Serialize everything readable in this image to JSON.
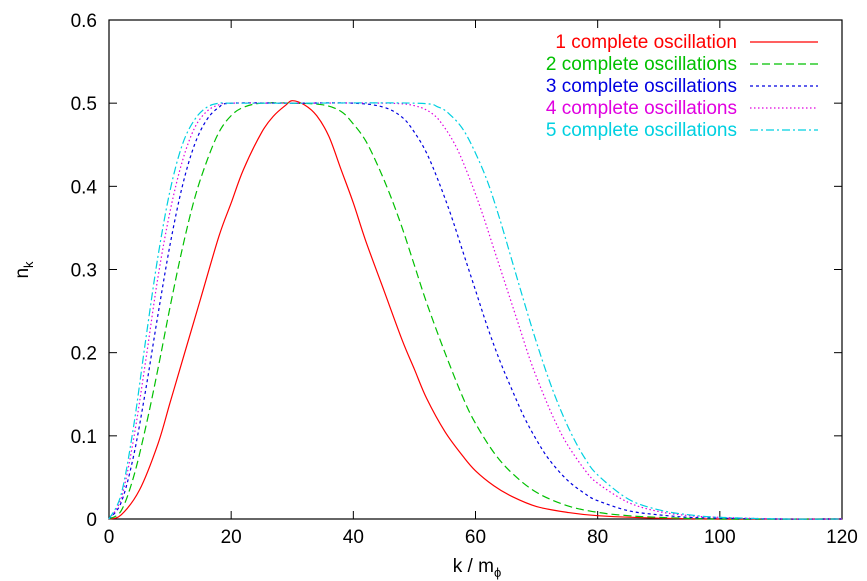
{
  "chart_data": {
    "type": "line",
    "xlabel": "k / m",
    "xlabel_sub": "ϕ",
    "ylabel": "n",
    "ylabel_sub": "k",
    "xlim": [
      0,
      120
    ],
    "ylim": [
      0,
      0.6
    ],
    "xticks": [
      0,
      20,
      40,
      60,
      80,
      100,
      120
    ],
    "yticks": [
      0,
      0.1,
      0.2,
      0.3,
      0.4,
      0.5,
      0.6
    ],
    "xtick_labels": [
      "0",
      "20",
      "40",
      "60",
      "80",
      "100",
      "120"
    ],
    "ytick_labels": [
      "0",
      "0.1",
      "0.2",
      "0.3",
      "0.4",
      "0.5",
      "0.6"
    ],
    "grid": false,
    "legend_position": "top-right",
    "series": [
      {
        "name": "1 complete oscillation",
        "color": "#ff0000",
        "dash": "solid",
        "points": [
          [
            0,
            0
          ],
          [
            2,
            0.005
          ],
          [
            5,
            0.035
          ],
          [
            8,
            0.09
          ],
          [
            10,
            0.14
          ],
          [
            12,
            0.19
          ],
          [
            15,
            0.265
          ],
          [
            18,
            0.34
          ],
          [
            20,
            0.38
          ],
          [
            22,
            0.42
          ],
          [
            25,
            0.465
          ],
          [
            27,
            0.485
          ],
          [
            29,
            0.498
          ],
          [
            30,
            0.503
          ],
          [
            32,
            0.498
          ],
          [
            34,
            0.485
          ],
          [
            36,
            0.46
          ],
          [
            38,
            0.42
          ],
          [
            40,
            0.38
          ],
          [
            42,
            0.335
          ],
          [
            45,
            0.275
          ],
          [
            48,
            0.215
          ],
          [
            50,
            0.18
          ],
          [
            52,
            0.145
          ],
          [
            55,
            0.105
          ],
          [
            58,
            0.075
          ],
          [
            60,
            0.058
          ],
          [
            63,
            0.04
          ],
          [
            66,
            0.027
          ],
          [
            70,
            0.015
          ],
          [
            75,
            0.008
          ],
          [
            80,
            0.004
          ],
          [
            90,
            0.001
          ],
          [
            100,
            0.0
          ],
          [
            120,
            0.0
          ]
        ]
      },
      {
        "name": "2 complete oscillations",
        "color": "#00c000",
        "dash": "8,4",
        "points": [
          [
            0,
            0
          ],
          [
            2,
            0.01
          ],
          [
            4,
            0.05
          ],
          [
            6,
            0.11
          ],
          [
            8,
            0.18
          ],
          [
            10,
            0.255
          ],
          [
            12,
            0.325
          ],
          [
            14,
            0.385
          ],
          [
            16,
            0.43
          ],
          [
            18,
            0.465
          ],
          [
            20,
            0.485
          ],
          [
            22,
            0.495
          ],
          [
            25,
            0.5
          ],
          [
            30,
            0.5
          ],
          [
            35,
            0.498
          ],
          [
            38,
            0.49
          ],
          [
            40,
            0.475
          ],
          [
            42,
            0.455
          ],
          [
            44,
            0.425
          ],
          [
            46,
            0.39
          ],
          [
            48,
            0.35
          ],
          [
            50,
            0.305
          ],
          [
            52,
            0.26
          ],
          [
            55,
            0.2
          ],
          [
            58,
            0.145
          ],
          [
            60,
            0.115
          ],
          [
            63,
            0.08
          ],
          [
            66,
            0.055
          ],
          [
            70,
            0.032
          ],
          [
            75,
            0.016
          ],
          [
            80,
            0.008
          ],
          [
            85,
            0.004
          ],
          [
            90,
            0.002
          ],
          [
            100,
            0.0
          ],
          [
            120,
            0.0
          ]
        ]
      },
      {
        "name": "3 complete oscillations",
        "color": "#0000e0",
        "dash": "3,3",
        "points": [
          [
            0,
            0
          ],
          [
            2,
            0.02
          ],
          [
            4,
            0.075
          ],
          [
            6,
            0.155
          ],
          [
            8,
            0.245
          ],
          [
            10,
            0.33
          ],
          [
            12,
            0.4
          ],
          [
            14,
            0.45
          ],
          [
            16,
            0.48
          ],
          [
            18,
            0.495
          ],
          [
            20,
            0.5
          ],
          [
            30,
            0.5
          ],
          [
            40,
            0.5
          ],
          [
            45,
            0.495
          ],
          [
            48,
            0.483
          ],
          [
            50,
            0.465
          ],
          [
            52,
            0.44
          ],
          [
            54,
            0.405
          ],
          [
            56,
            0.365
          ],
          [
            58,
            0.32
          ],
          [
            60,
            0.275
          ],
          [
            62,
            0.23
          ],
          [
            64,
            0.19
          ],
          [
            66,
            0.155
          ],
          [
            68,
            0.122
          ],
          [
            70,
            0.095
          ],
          [
            72,
            0.072
          ],
          [
            75,
            0.047
          ],
          [
            78,
            0.03
          ],
          [
            80,
            0.022
          ],
          [
            85,
            0.01
          ],
          [
            90,
            0.005
          ],
          [
            95,
            0.002
          ],
          [
            100,
            0.001
          ],
          [
            110,
            0.0
          ],
          [
            120,
            0.0
          ]
        ]
      },
      {
        "name": "4 complete oscillations",
        "color": "#e000e0",
        "dash": "1.5,2.5",
        "points": [
          [
            0,
            0
          ],
          [
            2,
            0.025
          ],
          [
            4,
            0.095
          ],
          [
            6,
            0.19
          ],
          [
            8,
            0.29
          ],
          [
            10,
            0.37
          ],
          [
            12,
            0.43
          ],
          [
            14,
            0.47
          ],
          [
            16,
            0.49
          ],
          [
            18,
            0.498
          ],
          [
            20,
            0.5
          ],
          [
            30,
            0.5
          ],
          [
            45,
            0.5
          ],
          [
            50,
            0.497
          ],
          [
            53,
            0.487
          ],
          [
            55,
            0.47
          ],
          [
            57,
            0.445
          ],
          [
            59,
            0.41
          ],
          [
            61,
            0.37
          ],
          [
            63,
            0.325
          ],
          [
            65,
            0.28
          ],
          [
            67,
            0.235
          ],
          [
            69,
            0.19
          ],
          [
            71,
            0.152
          ],
          [
            73,
            0.118
          ],
          [
            75,
            0.09
          ],
          [
            78,
            0.058
          ],
          [
            80,
            0.043
          ],
          [
            85,
            0.02
          ],
          [
            90,
            0.009
          ],
          [
            95,
            0.004
          ],
          [
            100,
            0.002
          ],
          [
            110,
            0.0
          ],
          [
            120,
            0.0
          ]
        ]
      },
      {
        "name": "5 complete oscillations",
        "color": "#00d0e0",
        "dash": "8,3,2,3",
        "points": [
          [
            0,
            0
          ],
          [
            2,
            0.03
          ],
          [
            4,
            0.11
          ],
          [
            6,
            0.215
          ],
          [
            8,
            0.315
          ],
          [
            10,
            0.395
          ],
          [
            12,
            0.45
          ],
          [
            14,
            0.48
          ],
          [
            16,
            0.495
          ],
          [
            18,
            0.5
          ],
          [
            20,
            0.5
          ],
          [
            30,
            0.5
          ],
          [
            50,
            0.5
          ],
          [
            54,
            0.495
          ],
          [
            56,
            0.485
          ],
          [
            58,
            0.468
          ],
          [
            60,
            0.44
          ],
          [
            62,
            0.405
          ],
          [
            64,
            0.36
          ],
          [
            66,
            0.31
          ],
          [
            68,
            0.26
          ],
          [
            70,
            0.212
          ],
          [
            72,
            0.168
          ],
          [
            74,
            0.13
          ],
          [
            76,
            0.098
          ],
          [
            78,
            0.072
          ],
          [
            80,
            0.053
          ],
          [
            85,
            0.024
          ],
          [
            90,
            0.011
          ],
          [
            95,
            0.005
          ],
          [
            100,
            0.002
          ],
          [
            110,
            0.0
          ],
          [
            120,
            0.0
          ]
        ]
      }
    ]
  }
}
